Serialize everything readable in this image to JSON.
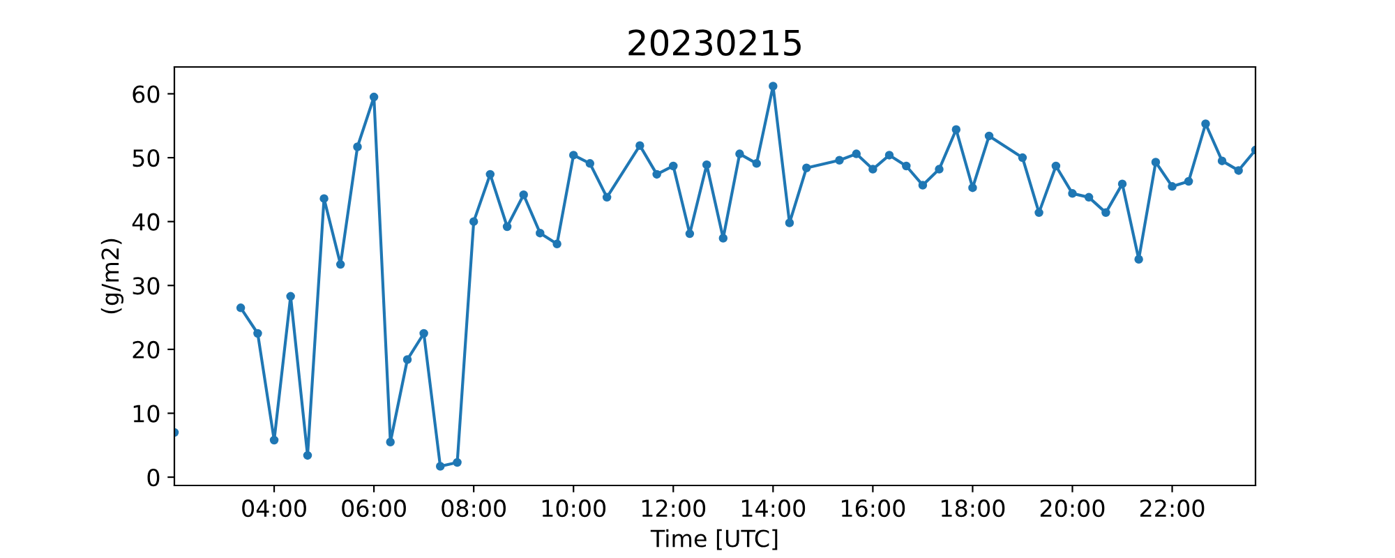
{
  "chart_data": {
    "type": "line",
    "title": "20230215",
    "xlabel": "Time [UTC]",
    "ylabel": "(g/m2)",
    "x": [
      2.0,
      2.33,
      2.67,
      3.0,
      3.33,
      3.67,
      4.0,
      4.33,
      4.67,
      5.0,
      5.33,
      5.67,
      6.0,
      6.33,
      6.67,
      7.0,
      7.33,
      7.67,
      8.0,
      8.33,
      8.67,
      9.0,
      9.33,
      9.67,
      10.0,
      10.33,
      10.67,
      11.33,
      11.67,
      12.0,
      12.33,
      12.67,
      13.0,
      13.33,
      13.67,
      14.0,
      14.33,
      14.67,
      15.33,
      15.67,
      16.0,
      16.33,
      16.67,
      17.0,
      17.33,
      17.67,
      18.0,
      18.33,
      19.0,
      19.33,
      19.67,
      20.0,
      20.33,
      20.67,
      21.0,
      21.33,
      21.67,
      22.0,
      22.33,
      22.67,
      23.0,
      23.33,
      23.67
    ],
    "series": [
      {
        "color": "#1f77b4",
        "values": [
          7.0,
          null,
          null,
          null,
          26.5,
          22.5,
          5.8,
          28.3,
          3.4,
          43.6,
          33.3,
          51.7,
          59.5,
          5.5,
          18.4,
          22.5,
          1.7,
          2.3,
          40.0,
          47.4,
          39.2,
          44.2,
          38.2,
          36.5,
          50.4,
          49.1,
          43.8,
          51.9,
          47.4,
          48.7,
          38.1,
          48.9,
          37.4,
          50.6,
          49.1,
          61.2,
          39.8,
          48.4,
          49.6,
          50.6,
          48.2,
          50.4,
          48.7,
          45.7,
          48.2,
          54.4,
          45.3,
          53.4,
          50.0,
          41.4,
          48.7,
          44.4,
          43.8,
          41.4,
          45.9,
          34.1,
          49.3,
          45.5,
          46.3,
          55.3,
          49.5,
          48.0,
          51.2
        ]
      }
    ],
    "xlim": [
      2.0,
      23.67
    ],
    "ylim": [
      -1.3,
      64.2
    ],
    "xticks": [
      {
        "value": 4,
        "label": "04:00"
      },
      {
        "value": 6,
        "label": "06:00"
      },
      {
        "value": 8,
        "label": "08:00"
      },
      {
        "value": 10,
        "label": "10:00"
      },
      {
        "value": 12,
        "label": "12:00"
      },
      {
        "value": 14,
        "label": "14:00"
      },
      {
        "value": 16,
        "label": "16:00"
      },
      {
        "value": 18,
        "label": "18:00"
      },
      {
        "value": 20,
        "label": "20:00"
      },
      {
        "value": 22,
        "label": "22:00"
      }
    ],
    "yticks": [
      0,
      10,
      20,
      30,
      40,
      50,
      60
    ],
    "grid": false,
    "legend": false,
    "marker": "circle",
    "line_style": "solid"
  }
}
